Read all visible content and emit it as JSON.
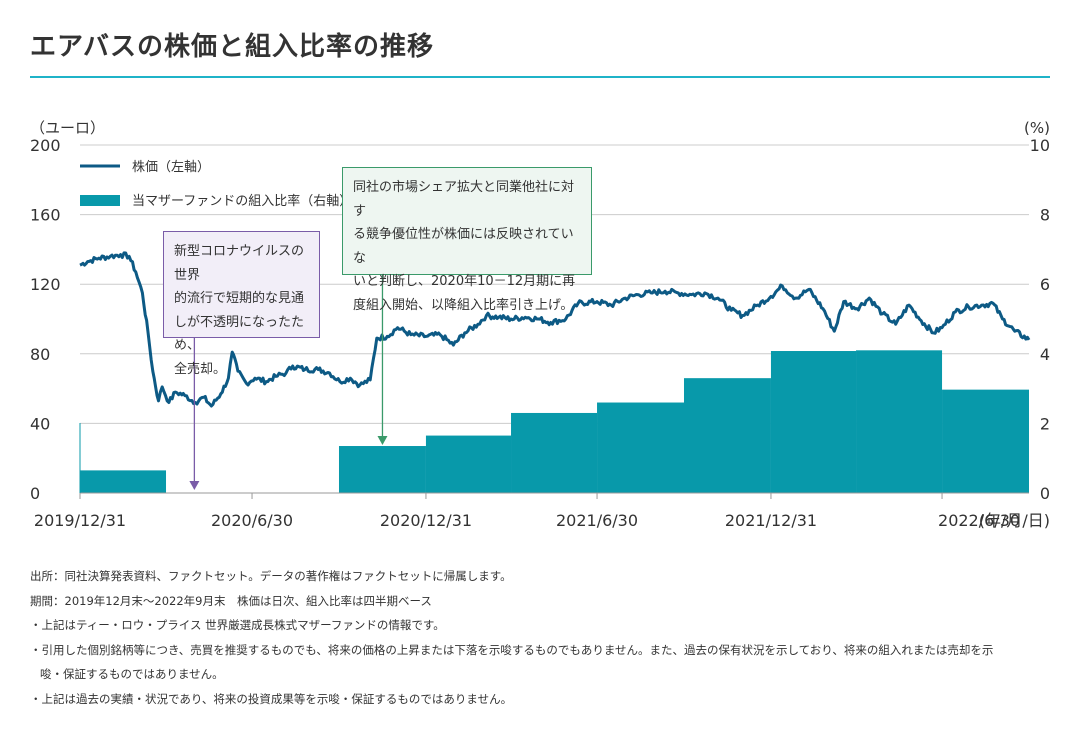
{
  "title": "エアバスの株価と組入比率の推移",
  "colors": {
    "accent_rule": "#1fb3c8",
    "price_line": "#0d5a85",
    "weight_bar": "#0899aa",
    "grid": "#cccccc",
    "callout_sell_border": "#7a5ca8",
    "callout_buy_border": "#3a9a6a"
  },
  "chart_data": {
    "type": "line+bar",
    "left_axis": {
      "unit_label": "（ユーロ）",
      "ticks": [
        0,
        40,
        80,
        120,
        160,
        200
      ],
      "range": [
        0,
        200
      ]
    },
    "right_axis": {
      "unit_label": "(%)",
      "ticks": [
        0,
        2,
        4,
        6,
        8,
        10
      ],
      "range": [
        0,
        10
      ]
    },
    "x_axis": {
      "range": [
        "2019-12-31",
        "2022-09-30"
      ],
      "tick_dates": [
        "2019-12-31",
        "2020-06-30",
        "2020-12-31",
        "2021-06-30",
        "2021-12-31",
        "2022-06-30"
      ],
      "tick_labels": [
        "2019/12/31",
        "2020/6/30",
        "2020/12/31",
        "2021/6/30",
        "2021/12/31",
        "2022/6/30"
      ],
      "unit_label": "(年/月/日)"
    },
    "grid": true,
    "legend": {
      "position": "top-left",
      "price": "株価（左軸）",
      "weight": "当マザーファンドの組入比率（右軸）"
    },
    "price_series": {
      "name": "株価（左軸）",
      "axis": "left",
      "points": [
        [
          "2019-12-31",
          131
        ],
        [
          "2020-01-08",
          133
        ],
        [
          "2020-01-20",
          135
        ],
        [
          "2020-02-01",
          136
        ],
        [
          "2020-02-12",
          137
        ],
        [
          "2020-02-21",
          136
        ],
        [
          "2020-02-28",
          127
        ],
        [
          "2020-03-06",
          115
        ],
        [
          "2020-03-12",
          92
        ],
        [
          "2020-03-17",
          70
        ],
        [
          "2020-03-23",
          53
        ],
        [
          "2020-03-27",
          61
        ],
        [
          "2020-04-03",
          52
        ],
        [
          "2020-04-10",
          58
        ],
        [
          "2020-04-20",
          56
        ],
        [
          "2020-05-01",
          52
        ],
        [
          "2020-05-10",
          55
        ],
        [
          "2020-05-18",
          50
        ],
        [
          "2020-05-28",
          57
        ],
        [
          "2020-06-05",
          66
        ],
        [
          "2020-06-09",
          81
        ],
        [
          "2020-06-15",
          70
        ],
        [
          "2020-06-24",
          63
        ],
        [
          "2020-07-03",
          66
        ],
        [
          "2020-07-15",
          64
        ],
        [
          "2020-07-25",
          67
        ],
        [
          "2020-08-05",
          69
        ],
        [
          "2020-08-12",
          73
        ],
        [
          "2020-08-25",
          71
        ],
        [
          "2020-09-08",
          71
        ],
        [
          "2020-09-20",
          69
        ],
        [
          "2020-10-01",
          64
        ],
        [
          "2020-10-12",
          66
        ],
        [
          "2020-10-22",
          62
        ],
        [
          "2020-11-02",
          65
        ],
        [
          "2020-11-09",
          89
        ],
        [
          "2020-11-20",
          90
        ],
        [
          "2020-12-01",
          95
        ],
        [
          "2020-12-15",
          91
        ],
        [
          "2020-12-31",
          90
        ],
        [
          "2021-01-15",
          91
        ],
        [
          "2021-01-29",
          85
        ],
        [
          "2021-02-10",
          92
        ],
        [
          "2021-02-24",
          97
        ],
        [
          "2021-03-05",
          102
        ],
        [
          "2021-03-18",
          101
        ],
        [
          "2021-03-31",
          100
        ],
        [
          "2021-04-15",
          101
        ],
        [
          "2021-04-29",
          100
        ],
        [
          "2021-05-12",
          98
        ],
        [
          "2021-05-28",
          100
        ],
        [
          "2021-06-10",
          109
        ],
        [
          "2021-06-30",
          110
        ],
        [
          "2021-07-15",
          108
        ],
        [
          "2021-07-30",
          112
        ],
        [
          "2021-08-12",
          114
        ],
        [
          "2021-08-26",
          115
        ],
        [
          "2021-09-10",
          116
        ],
        [
          "2021-09-24",
          115
        ],
        [
          "2021-10-08",
          114
        ],
        [
          "2021-10-22",
          115
        ],
        [
          "2021-11-05",
          112
        ],
        [
          "2021-11-19",
          105
        ],
        [
          "2021-12-01",
          102
        ],
        [
          "2021-12-17",
          108
        ],
        [
          "2021-12-31",
          113
        ],
        [
          "2022-01-12",
          119
        ],
        [
          "2022-01-26",
          112
        ],
        [
          "2022-02-09",
          117
        ],
        [
          "2022-02-24",
          106
        ],
        [
          "2022-03-08",
          93
        ],
        [
          "2022-03-18",
          110
        ],
        [
          "2022-04-01",
          106
        ],
        [
          "2022-04-14",
          112
        ],
        [
          "2022-04-28",
          103
        ],
        [
          "2022-05-12",
          97
        ],
        [
          "2022-05-26",
          108
        ],
        [
          "2022-06-08",
          99
        ],
        [
          "2022-06-21",
          92
        ],
        [
          "2022-06-30",
          95
        ],
        [
          "2022-07-14",
          104
        ],
        [
          "2022-07-28",
          107
        ],
        [
          "2022-08-11",
          108
        ],
        [
          "2022-08-23",
          109
        ],
        [
          "2022-09-02",
          100
        ],
        [
          "2022-09-15",
          93
        ],
        [
          "2022-09-30",
          88
        ]
      ]
    },
    "weight_series": {
      "name": "当マザーファンドの組入比率（右軸）",
      "axis": "right",
      "quarters": [
        {
          "start": "2019-12-31",
          "end": "2020-03-31",
          "value": 0.65
        },
        {
          "start": "2020-03-31",
          "end": "2020-06-30",
          "value": 0
        },
        {
          "start": "2020-06-30",
          "end": "2020-09-30",
          "value": 0
        },
        {
          "start": "2020-09-30",
          "end": "2020-12-31",
          "value": 1.35
        },
        {
          "start": "2020-12-31",
          "end": "2021-03-31",
          "value": 1.65
        },
        {
          "start": "2021-03-31",
          "end": "2021-06-30",
          "value": 2.3
        },
        {
          "start": "2021-06-30",
          "end": "2021-09-30",
          "value": 2.6
        },
        {
          "start": "2021-09-30",
          "end": "2021-12-31",
          "value": 3.3
        },
        {
          "start": "2021-12-31",
          "end": "2022-03-31",
          "value": 4.08
        },
        {
          "start": "2022-03-31",
          "end": "2022-06-30",
          "value": 4.1
        },
        {
          "start": "2022-06-30",
          "end": "2022-09-30",
          "value": 2.97
        }
      ]
    },
    "annotations": [
      {
        "id": "sell",
        "date": "2020-04-30",
        "text": "新型コロナウイルスの世界的流行で短期的な見通しが不透明になったため、全売却。"
      },
      {
        "id": "buy",
        "date": "2020-11-15",
        "text": "同社の市場シェア拡大と同業他社に対する競争優位性が株価には反映されていないと判断し、2020年10－12月期に再度組入開始、以降組入比率引き上げ。"
      }
    ]
  },
  "callouts": {
    "sell": [
      "新型コロナウイルスの世界",
      "的流行で短期的な見通",
      "しが不透明になったため、",
      "全売却。"
    ],
    "buy": [
      "同社の市場シェア拡大と同業他社に対す",
      "る競争優位性が株価には反映されていな",
      "いと判断し、2020年10－12月期に再",
      "度組入開始、以降組入比率引き上げ。"
    ]
  },
  "notes": [
    "出所：同社決算発表資料、ファクトセット。データの著作権はファクトセットに帰属します。",
    "期間：2019年12月末～2022年9月末　株価は日次、組入比率は四半期ベース",
    "・上記はティー・ロウ・プライス 世界厳選成長株式マザーファンドの情報です。",
    "・引用した個別銘柄等につき、売買を推奨するものでも、将来の価格の上昇または下落を示唆するものでもありません。また、過去の保有状況を示しており、将来の組入れまたは売却を示",
    "唆・保証するものではありません。",
    "・上記は過去の実績・状況であり、将来の投資成果等を示唆・保証するものではありません。"
  ]
}
